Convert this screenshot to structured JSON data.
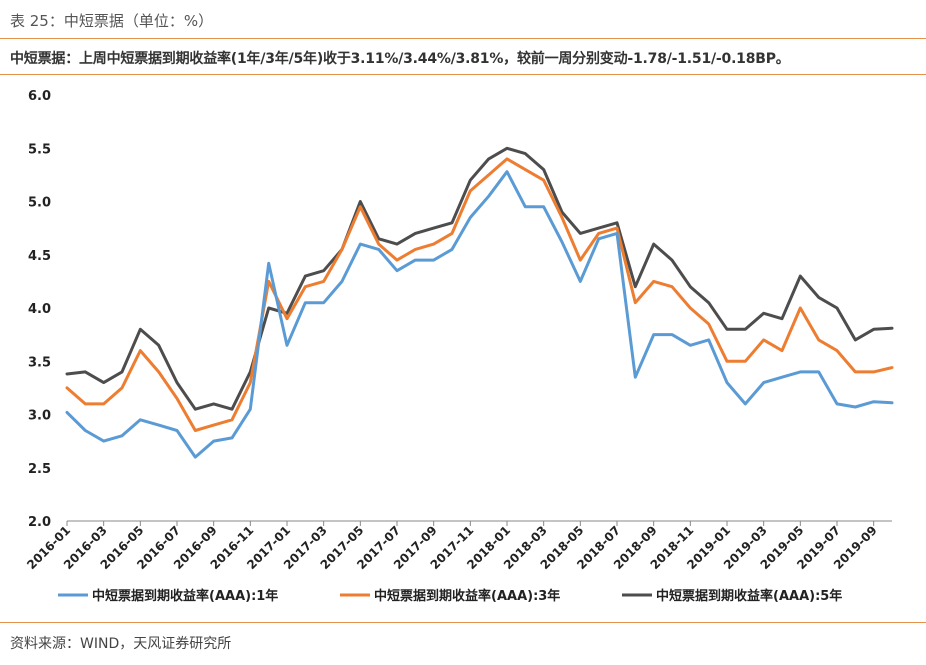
{
  "caption": "表 25：中短票据（单位：%）",
  "headline": "中短票据：上周中短票据到期收益率(1年/3年/5年)收于3.11%/3.44%/3.81%，较前一周分别变动-1.78/-1.51/-0.18BP。",
  "source": "资料来源：WIND，天风证券研究所",
  "colors": {
    "rule": "#E3914B",
    "s1": "#5B9BD5",
    "s3": "#ED7D31",
    "s5": "#4D4D4D"
  },
  "chart_data": {
    "type": "line",
    "ylim": [
      2.0,
      6.0
    ],
    "yticks": [
      "2.0",
      "2.5",
      "3.0",
      "3.5",
      "4.0",
      "4.5",
      "5.0",
      "5.5",
      "6.0"
    ],
    "xlim": [
      "2016-01",
      "2019-10"
    ],
    "xticks": [
      "2016-01",
      "2016-03",
      "2016-05",
      "2016-07",
      "2016-09",
      "2016-11",
      "2017-01",
      "2017-03",
      "2017-05",
      "2017-07",
      "2017-09",
      "2017-11",
      "2018-01",
      "2018-03",
      "2018-05",
      "2018-07",
      "2018-09",
      "2018-11",
      "2019-01",
      "2019-03",
      "2019-05",
      "2019-07",
      "2019-09"
    ],
    "series": [
      {
        "name": "中短票据到期收益率(AAA):1年",
        "color": "#5B9BD5",
        "x": [
          "2016-01",
          "2016-02",
          "2016-03",
          "2016-04",
          "2016-05",
          "2016-06",
          "2016-07",
          "2016-08",
          "2016-09",
          "2016-10",
          "2016-11",
          "2016-12",
          "2017-01",
          "2017-02",
          "2017-03",
          "2017-04",
          "2017-05",
          "2017-06",
          "2017-07",
          "2017-08",
          "2017-09",
          "2017-10",
          "2017-11",
          "2017-12",
          "2018-01",
          "2018-02",
          "2018-03",
          "2018-04",
          "2018-05",
          "2018-06",
          "2018-07",
          "2018-08",
          "2018-09",
          "2018-10",
          "2018-11",
          "2018-12",
          "2019-01",
          "2019-02",
          "2019-03",
          "2019-04",
          "2019-05",
          "2019-06",
          "2019-07",
          "2019-08",
          "2019-09",
          "2019-10"
        ],
        "values": [
          3.02,
          2.85,
          2.75,
          2.8,
          2.95,
          2.9,
          2.85,
          2.6,
          2.75,
          2.78,
          3.05,
          4.42,
          3.65,
          4.05,
          4.05,
          4.25,
          4.6,
          4.55,
          4.35,
          4.45,
          4.45,
          4.55,
          4.85,
          5.05,
          5.28,
          4.95,
          4.95,
          4.62,
          4.25,
          4.65,
          4.7,
          3.35,
          3.75,
          3.75,
          3.65,
          3.7,
          3.3,
          3.1,
          3.3,
          3.35,
          3.4,
          3.4,
          3.1,
          3.07,
          3.12,
          3.11
        ]
      },
      {
        "name": "中短票据到期收益率(AAA):3年",
        "color": "#ED7D31",
        "x": [
          "2016-01",
          "2016-02",
          "2016-03",
          "2016-04",
          "2016-05",
          "2016-06",
          "2016-07",
          "2016-08",
          "2016-09",
          "2016-10",
          "2016-11",
          "2016-12",
          "2017-01",
          "2017-02",
          "2017-03",
          "2017-04",
          "2017-05",
          "2017-06",
          "2017-07",
          "2017-08",
          "2017-09",
          "2017-10",
          "2017-11",
          "2017-12",
          "2018-01",
          "2018-02",
          "2018-03",
          "2018-04",
          "2018-05",
          "2018-06",
          "2018-07",
          "2018-08",
          "2018-09",
          "2018-10",
          "2018-11",
          "2018-12",
          "2019-01",
          "2019-02",
          "2019-03",
          "2019-04",
          "2019-05",
          "2019-06",
          "2019-07",
          "2019-08",
          "2019-09",
          "2019-10"
        ],
        "values": [
          3.25,
          3.1,
          3.1,
          3.25,
          3.6,
          3.4,
          3.15,
          2.85,
          2.9,
          2.95,
          3.3,
          4.25,
          3.9,
          4.2,
          4.25,
          4.55,
          4.95,
          4.6,
          4.45,
          4.55,
          4.6,
          4.7,
          5.1,
          5.25,
          5.4,
          5.3,
          5.2,
          4.85,
          4.45,
          4.7,
          4.75,
          4.05,
          4.25,
          4.2,
          4.0,
          3.85,
          3.5,
          3.5,
          3.7,
          3.6,
          4.0,
          3.7,
          3.6,
          3.4,
          3.4,
          3.44
        ]
      },
      {
        "name": "中短票据到期收益率(AAA):5年",
        "color": "#4D4D4D",
        "x": [
          "2016-01",
          "2016-02",
          "2016-03",
          "2016-04",
          "2016-05",
          "2016-06",
          "2016-07",
          "2016-08",
          "2016-09",
          "2016-10",
          "2016-11",
          "2016-12",
          "2017-01",
          "2017-02",
          "2017-03",
          "2017-04",
          "2017-05",
          "2017-06",
          "2017-07",
          "2017-08",
          "2017-09",
          "2017-10",
          "2017-11",
          "2017-12",
          "2018-01",
          "2018-02",
          "2018-03",
          "2018-04",
          "2018-05",
          "2018-06",
          "2018-07",
          "2018-08",
          "2018-09",
          "2018-10",
          "2018-11",
          "2018-12",
          "2019-01",
          "2019-02",
          "2019-03",
          "2019-04",
          "2019-05",
          "2019-06",
          "2019-07",
          "2019-08",
          "2019-09",
          "2019-10"
        ],
        "values": [
          3.38,
          3.4,
          3.3,
          3.4,
          3.8,
          3.65,
          3.3,
          3.05,
          3.1,
          3.05,
          3.4,
          4.0,
          3.95,
          4.3,
          4.35,
          4.55,
          5.0,
          4.65,
          4.6,
          4.7,
          4.75,
          4.8,
          5.2,
          5.4,
          5.5,
          5.45,
          5.3,
          4.9,
          4.7,
          4.75,
          4.8,
          4.2,
          4.6,
          4.45,
          4.2,
          4.05,
          3.8,
          3.8,
          3.95,
          3.9,
          4.3,
          4.1,
          4.0,
          3.7,
          3.8,
          3.81
        ]
      }
    ]
  }
}
